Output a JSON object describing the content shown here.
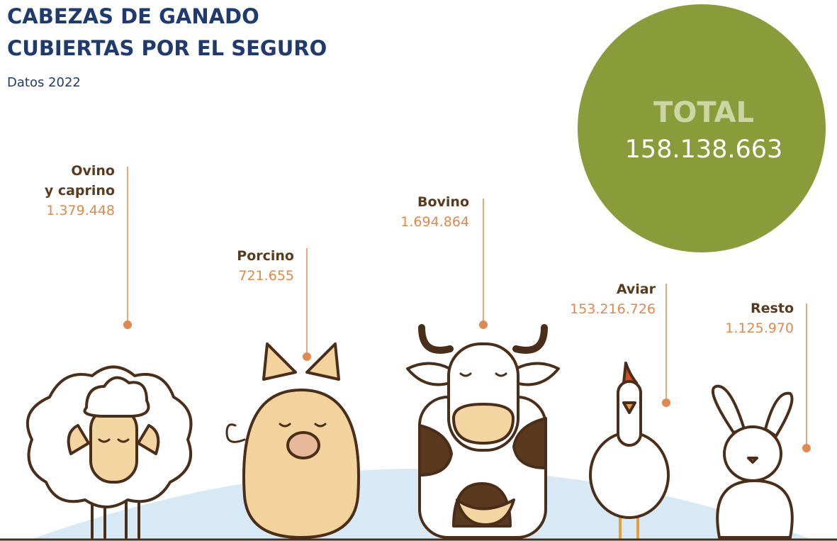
{
  "title": [
    "CABEZAS DE GANADO",
    "CUBIERTAS POR EL SEGURO"
  ],
  "subtitle": "Datos 2022",
  "total": {
    "label": "TOTAL",
    "value": "158.138.663"
  },
  "items": [
    {
      "label": [
        "Ovino",
        "y caprino"
      ],
      "value": "1.379.448"
    },
    {
      "label": [
        "Porcino"
      ],
      "value": "721.655"
    },
    {
      "label": [
        "Bovino"
      ],
      "value": "1.694.864"
    },
    {
      "label": [
        "Aviar"
      ],
      "value": "153.216.726"
    },
    {
      "label": [
        "Resto"
      ],
      "value": "1.125.970"
    }
  ]
}
